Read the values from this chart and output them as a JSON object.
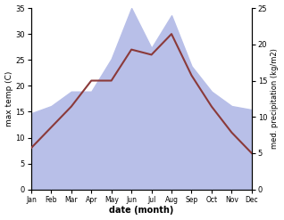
{
  "months": [
    "Jan",
    "Feb",
    "Mar",
    "Apr",
    "May",
    "Jun",
    "Jul",
    "Aug",
    "Sep",
    "Oct",
    "Nov",
    "Dec"
  ],
  "max_temp": [
    8.0,
    12.0,
    16.0,
    21.0,
    21.0,
    27.0,
    26.0,
    30.0,
    22.0,
    16.0,
    11.0,
    7.0
  ],
  "precipitation": [
    10.5,
    11.5,
    13.5,
    13.5,
    18.0,
    25.0,
    19.5,
    24.0,
    17.0,
    13.5,
    11.5,
    11.0
  ],
  "temp_color": "#8b3a3a",
  "precip_fill_color": "#b8bfe8",
  "temp_ylim": [
    0,
    35
  ],
  "precip_ylim": [
    0,
    25
  ],
  "temp_yticks": [
    0,
    5,
    10,
    15,
    20,
    25,
    30,
    35
  ],
  "precip_yticks": [
    0,
    5,
    10,
    15,
    20,
    25
  ],
  "xlabel": "date (month)",
  "ylabel_left": "max temp (C)",
  "ylabel_right": "med. precipitation (kg/m2)"
}
